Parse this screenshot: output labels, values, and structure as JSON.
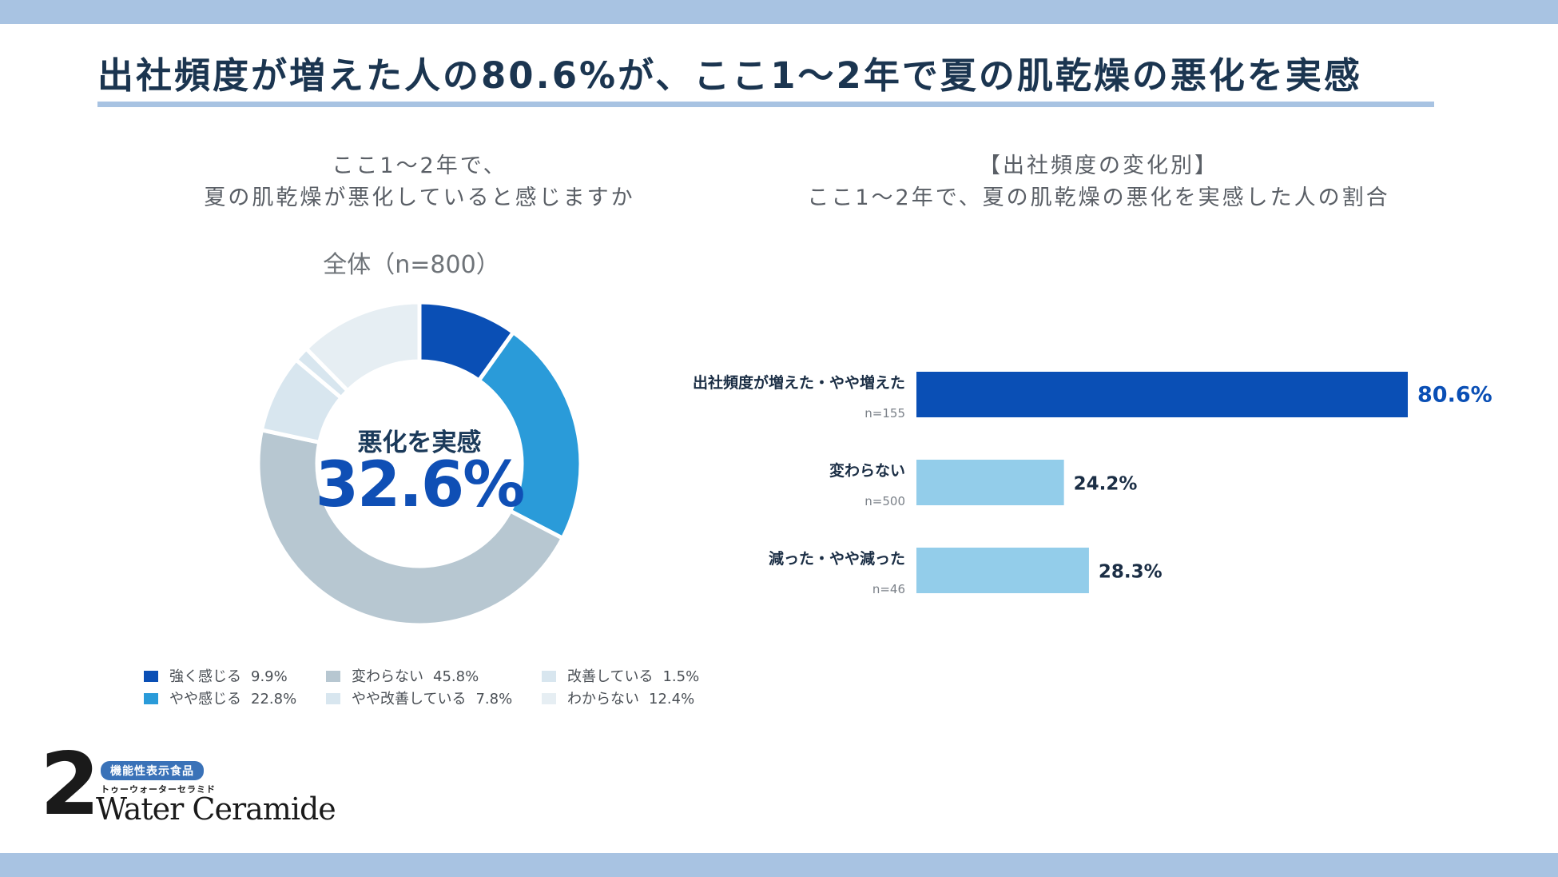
{
  "title": "出社頻度が増えた人の80.6%が、ここ1〜2年で夏の肌乾燥の悪化を実感",
  "colors": {
    "band": "#a8c3e2",
    "title_rule": "#a8c3e2",
    "dark_blue": "#0a4fb5",
    "mid_blue": "#2a9bd9",
    "gray": "#b7c7d1",
    "light_gray": "#d8e6ef",
    "pale_gray": "#e6eef3",
    "light_blue_bar": "#93cdea"
  },
  "left_panel": {
    "subtitle_line1": "ここ1〜2年で、",
    "subtitle_line2": "夏の肌乾燥が悪化していると感じますか",
    "overall_label": "全体（n=800）",
    "center_label": "悪化を実感",
    "center_value": "32.6%"
  },
  "right_panel": {
    "subtitle_line1": "【出社頻度の変化別】",
    "subtitle_line2": "ここ1〜2年で、夏の肌乾燥の悪化を実感した人の割合"
  },
  "chart_data": [
    {
      "type": "pie",
      "donut": true,
      "labels": [
        "強く感じる",
        "やや感じる",
        "変わらない",
        "やや改善している",
        "改善している",
        "わからない"
      ],
      "values": [
        9.9,
        22.8,
        45.8,
        7.8,
        1.5,
        12.4
      ],
      "value_labels": [
        "9.9%",
        "22.8%",
        "45.8%",
        "7.8%",
        "1.5%",
        "12.4%"
      ],
      "colors": [
        "#0a4fb5",
        "#2a9bd9",
        "#b7c7d1",
        "#d8e6ef",
        "#d8e6ef",
        "#e6eef3"
      ],
      "legend_position": "bottom"
    },
    {
      "type": "bar",
      "orientation": "horizontal",
      "categories": [
        "出社頻度が増えた・やや増えた",
        "変わらない",
        "減った・やや減った"
      ],
      "sample_sizes": [
        "n=155",
        "n=500",
        "n=46"
      ],
      "values": [
        80.6,
        24.2,
        28.3
      ],
      "value_labels": [
        "80.6%",
        "24.2%",
        "28.3%"
      ],
      "colors": [
        "#0a4fb5",
        "#93cdea",
        "#93cdea"
      ],
      "xlim": [
        0,
        80.6
      ]
    }
  ],
  "logo": {
    "numeral": "2",
    "badge": "機能性表示食品",
    "kana": "トゥーウォーターセラミド",
    "name": "Water Ceramide"
  }
}
